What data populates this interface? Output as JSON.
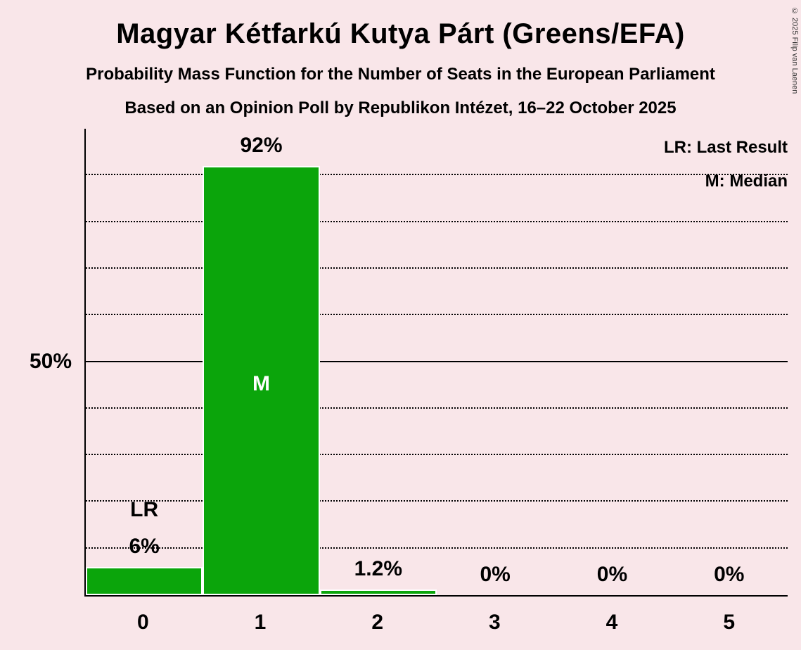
{
  "header": {
    "title": "Magyar Kétfarkú Kutya Párt (Greens/EFA)",
    "subtitle1": "Probability Mass Function for the Number of Seats in the European Parliament",
    "subtitle2": "Based on an Opinion Poll by Republikon Intézet, 16–22 October 2025"
  },
  "legend": {
    "lr": "LR: Last Result",
    "m": "M: Median"
  },
  "copyright": "© 2025 Filip van Laenen",
  "y_axis": {
    "label_50": "50%"
  },
  "colors": {
    "background": "#f9e6e9",
    "bar": "#0ba50b",
    "median_text": "#ffffff",
    "text": "#000000"
  },
  "chart_data": {
    "type": "bar",
    "title": "Magyar Kétfarkú Kutya Párt (Greens/EFA)",
    "xlabel": "",
    "ylabel": "",
    "categories": [
      "0",
      "1",
      "2",
      "3",
      "4",
      "5"
    ],
    "values": [
      6,
      92,
      1.2,
      0,
      0,
      0
    ],
    "bar_labels": [
      "6%",
      "92%",
      "1.2%",
      "0%",
      "0%",
      "0%"
    ],
    "annotations": {
      "last_result_seats": "0",
      "last_result_label": "LR",
      "median_seats": "1",
      "median_label": "M"
    },
    "ylim": [
      0,
      100
    ],
    "y_solid_gridline": 50,
    "y_dotted_gridlines": [
      10,
      20,
      30,
      40,
      60,
      70,
      80,
      90
    ],
    "legend_position": "top-right",
    "grid": "dotted-horizontal"
  }
}
